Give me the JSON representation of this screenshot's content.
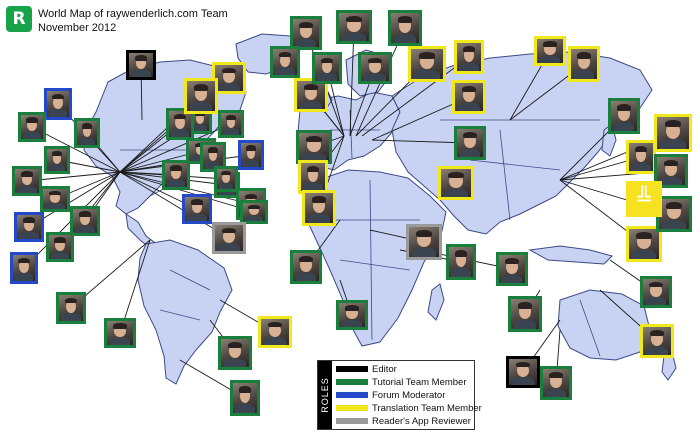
{
  "header": {
    "title_line1": "World Map of raywenderlich.com Team",
    "title_line2": "November 2012",
    "logo_glyph": "R"
  },
  "legend": {
    "heading": "ROLES",
    "items": [
      {
        "label": "Editor",
        "color": "#000000"
      },
      {
        "label": "Tutorial Team Member",
        "color": "#1a7f3c"
      },
      {
        "label": "Forum Moderator",
        "color": "#2348c8"
      },
      {
        "label": "Translation Team Member",
        "color": "#f0e81a"
      },
      {
        "label": "Reader's App Reviewer",
        "color": "#9a9a9a"
      }
    ]
  },
  "map": {
    "land_color": "#c8d3f4",
    "coast_color": "#3c4a86",
    "ocean_color": "#ffffff"
  },
  "members": [
    {
      "id": "m01",
      "role": "Editor"
    },
    {
      "id": "m02",
      "role": "Forum Moderator"
    },
    {
      "id": "m03",
      "role": "Tutorial Team Member"
    },
    {
      "id": "m04",
      "role": "Tutorial Team Member"
    },
    {
      "id": "m05",
      "role": "Tutorial Team Member"
    },
    {
      "id": "m06",
      "role": "Tutorial Team Member"
    },
    {
      "id": "m07",
      "role": "Tutorial Team Member"
    },
    {
      "id": "m08",
      "role": "Tutorial Team Member"
    },
    {
      "id": "m09",
      "role": "Forum Moderator"
    },
    {
      "id": "m10",
      "role": "Tutorial Team Member"
    },
    {
      "id": "m11",
      "role": "Forum Moderator"
    },
    {
      "id": "m12",
      "role": "Tutorial Team Member"
    },
    {
      "id": "m13",
      "role": "Tutorial Team Member"
    },
    {
      "id": "m14",
      "role": "Tutorial Team Member"
    },
    {
      "id": "m15",
      "role": "Forum Moderator"
    },
    {
      "id": "m16",
      "role": "Tutorial Team Member"
    },
    {
      "id": "m17",
      "role": "Translation Team Member"
    },
    {
      "id": "m18",
      "role": "Translation Team Member"
    },
    {
      "id": "m19",
      "role": "Tutorial Team Member"
    },
    {
      "id": "m20",
      "role": "Tutorial Team Member"
    },
    {
      "id": "m21",
      "role": "Tutorial Team Member"
    },
    {
      "id": "m22",
      "role": "Forum Moderator"
    },
    {
      "id": "m23",
      "role": "Tutorial Team Member"
    },
    {
      "id": "m24",
      "role": "Tutorial Team Member"
    },
    {
      "id": "m25",
      "role": "Tutorial Team Member"
    },
    {
      "id": "m26",
      "role": "Reader's App Reviewer"
    },
    {
      "id": "m27",
      "role": "Tutorial Team Member"
    },
    {
      "id": "m28",
      "role": "Tutorial Team Member"
    },
    {
      "id": "m29",
      "role": "Translation Team Member"
    },
    {
      "id": "m30",
      "role": "Tutorial Team Member"
    },
    {
      "id": "m31",
      "role": "Tutorial Team Member"
    },
    {
      "id": "m32",
      "role": "Tutorial Team Member"
    },
    {
      "id": "m33",
      "role": "Tutorial Team Member"
    },
    {
      "id": "m34",
      "role": "Tutorial Team Member"
    },
    {
      "id": "m35",
      "role": "Tutorial Team Member"
    },
    {
      "id": "m36",
      "role": "Translation Team Member"
    },
    {
      "id": "m37",
      "role": "Tutorial Team Member"
    },
    {
      "id": "m38",
      "role": "Tutorial Team Member"
    },
    {
      "id": "m39",
      "role": "Translation Team Member"
    },
    {
      "id": "m40",
      "role": "Translation Team Member"
    },
    {
      "id": "m41",
      "role": "Translation Team Member"
    },
    {
      "id": "m42",
      "role": "Tutorial Team Member"
    },
    {
      "id": "m43",
      "role": "Translation Team Member"
    },
    {
      "id": "m44",
      "role": "Translation Team Member"
    },
    {
      "id": "m45",
      "role": "Tutorial Team Member"
    },
    {
      "id": "m46",
      "role": "Tutorial Team Member"
    },
    {
      "id": "m47",
      "role": "Reader's App Reviewer"
    },
    {
      "id": "m48",
      "role": "Tutorial Team Member"
    },
    {
      "id": "m49",
      "role": "Tutorial Team Member"
    },
    {
      "id": "m50",
      "role": "Tutorial Team Member"
    },
    {
      "id": "m51",
      "role": "Translation Team Member"
    },
    {
      "id": "m52",
      "role": "Translation Team Member"
    },
    {
      "id": "m53",
      "role": "Translation Team Member"
    },
    {
      "id": "m54",
      "role": "Tutorial Team Member"
    },
    {
      "id": "m55",
      "role": "Translation Team Member"
    },
    {
      "id": "m56",
      "role": "Translation Team Member"
    },
    {
      "id": "m57",
      "role": "Tutorial Team Member"
    },
    {
      "id": "m58",
      "role": "Translation Team Member"
    },
    {
      "id": "m59",
      "role": "Editor"
    },
    {
      "id": "m60",
      "role": "Tutorial Team Member"
    },
    {
      "id": "m61",
      "role": "Translation Team Member"
    },
    {
      "id": "m62",
      "role": "Tutorial Team Member"
    },
    {
      "id": "m63",
      "role": "Tutorial Team Member"
    },
    {
      "id": "m64",
      "role": "Tutorial Team Member"
    }
  ]
}
